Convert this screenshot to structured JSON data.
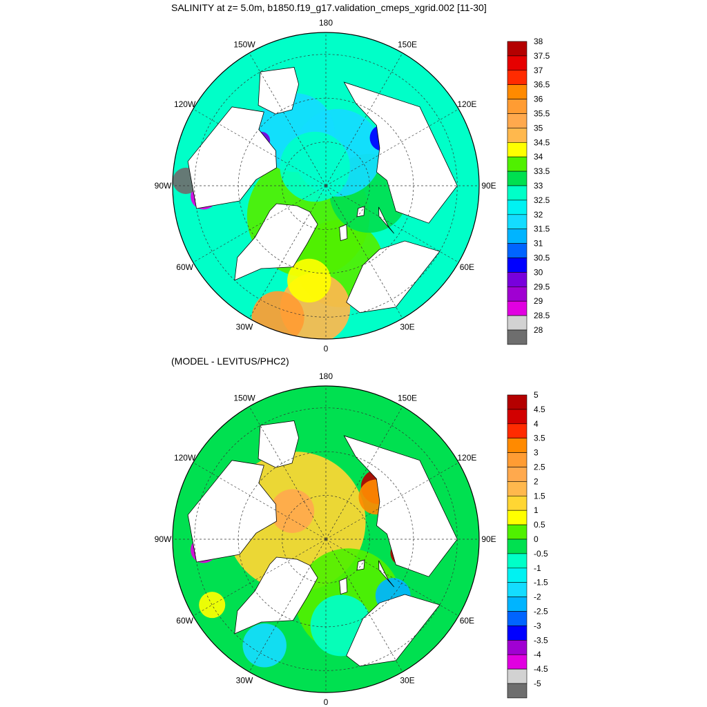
{
  "title": "SALINITY at z=   5.0m, b1850.f19_g17.validation_cmeps_xgrid.002 [11-30]",
  "subtitle": "(MODEL - LEVITUS/PHC2)",
  "longitude_labels": [
    "180",
    "150E",
    "120E",
    "90E",
    "60E",
    "30E",
    "0",
    "30W",
    "60W",
    "90W",
    "120W",
    "150W"
  ],
  "maps": [
    {
      "id": "salinity",
      "colorbar": {
        "labels": [
          "38",
          "37.5",
          "37",
          "36.5",
          "36",
          "35.5",
          "35",
          "34.5",
          "34",
          "33.5",
          "33",
          "32.5",
          "32",
          "31.5",
          "31",
          "30.5",
          "30",
          "29.5",
          "29",
          "28.5",
          "28"
        ],
        "colors": [
          "#b40000",
          "#e60000",
          "#ff2b00",
          "#ff8a00",
          "#ff9c33",
          "#ffa94d",
          "#ffb84d",
          "#ffff00",
          "#50f000",
          "#00e050",
          "#00ffc8",
          "#00f2f2",
          "#14dcff",
          "#00b4ff",
          "#0064ff",
          "#0000ff",
          "#7800dc",
          "#a000d2",
          "#e100e1",
          "#d2d2d2",
          "#6e6e6e"
        ]
      },
      "fields": [
        {
          "color": "#50f000",
          "lat": 82,
          "lon": -30,
          "r": 14
        },
        {
          "color": "#50f000",
          "lat": 72,
          "lon": 10,
          "r": 10
        },
        {
          "color": "#00e050",
          "lat": 80,
          "lon": 80,
          "r": 9
        },
        {
          "color": "#14dcff",
          "lat": 82,
          "lon": 160,
          "r": 10
        },
        {
          "color": "#14dcff",
          "lat": 76,
          "lon": -150,
          "r": 9
        },
        {
          "color": "#00ffc8",
          "lat": 85,
          "lon": -150,
          "r": 8
        },
        {
          "color": "#ffb84d",
          "lat": 62,
          "lon": -5,
          "r": 8
        },
        {
          "color": "#ff9c33",
          "lat": 58,
          "lon": -20,
          "r": 6
        },
        {
          "color": "#ffff00",
          "lat": 68,
          "lon": -10,
          "r": 5
        },
        {
          "color": "#0000ff",
          "lat": 73,
          "lon": 130,
          "r": 3
        },
        {
          "color": "#7800dc",
          "lat": 72,
          "lon": -125,
          "r": 2
        },
        {
          "color": "#e100e1",
          "lat": 62,
          "lon": -85,
          "r": 3
        },
        {
          "color": "#6e6e6e",
          "lat": 58,
          "lon": -92,
          "r": 3
        }
      ]
    },
    {
      "id": "difference",
      "colorbar": {
        "labels": [
          "5",
          "4.5",
          "4",
          "3.5",
          "3",
          "2.5",
          "2",
          "1.5",
          "1",
          "0.5",
          "0",
          "-0.5",
          "-1",
          "-1.5",
          "-2",
          "-2.5",
          "-3",
          "-3.5",
          "-4",
          "-4.5",
          "-5"
        ],
        "colors": [
          "#b40000",
          "#d20000",
          "#ff2b00",
          "#ff8a00",
          "#ff9c33",
          "#ffa94d",
          "#ffb84d",
          "#ffd633",
          "#ffff00",
          "#50f000",
          "#00e050",
          "#00ffc8",
          "#00f2f2",
          "#14dcff",
          "#00b4ff",
          "#0064ff",
          "#0000ff",
          "#a000d2",
          "#e100e1",
          "#d2d2d2",
          "#6e6e6e"
        ]
      },
      "fields": [
        {
          "color": "#ffd633",
          "lat": 82,
          "lon": -120,
          "r": 16
        },
        {
          "color": "#ffa94d",
          "lat": 80,
          "lon": -130,
          "r": 5
        },
        {
          "color": "#50f000",
          "lat": 75,
          "lon": 20,
          "r": 12
        },
        {
          "color": "#00ffc8",
          "lat": 70,
          "lon": 10,
          "r": 7
        },
        {
          "color": "#14dcff",
          "lat": 62,
          "lon": -30,
          "r": 5
        },
        {
          "color": "#00b4ff",
          "lat": 70,
          "lon": 50,
          "r": 4
        },
        {
          "color": "#b40000",
          "lat": 73,
          "lon": 135,
          "r": 4
        },
        {
          "color": "#ff8a00",
          "lat": 75,
          "lon": 130,
          "r": 4
        },
        {
          "color": "#b40000",
          "lat": 72,
          "lon": 80,
          "r": 3
        },
        {
          "color": "#e100e1",
          "lat": 62,
          "lon": -85,
          "r": 3
        },
        {
          "color": "#ffff00",
          "lat": 60,
          "lon": -60,
          "r": 3
        }
      ]
    }
  ]
}
